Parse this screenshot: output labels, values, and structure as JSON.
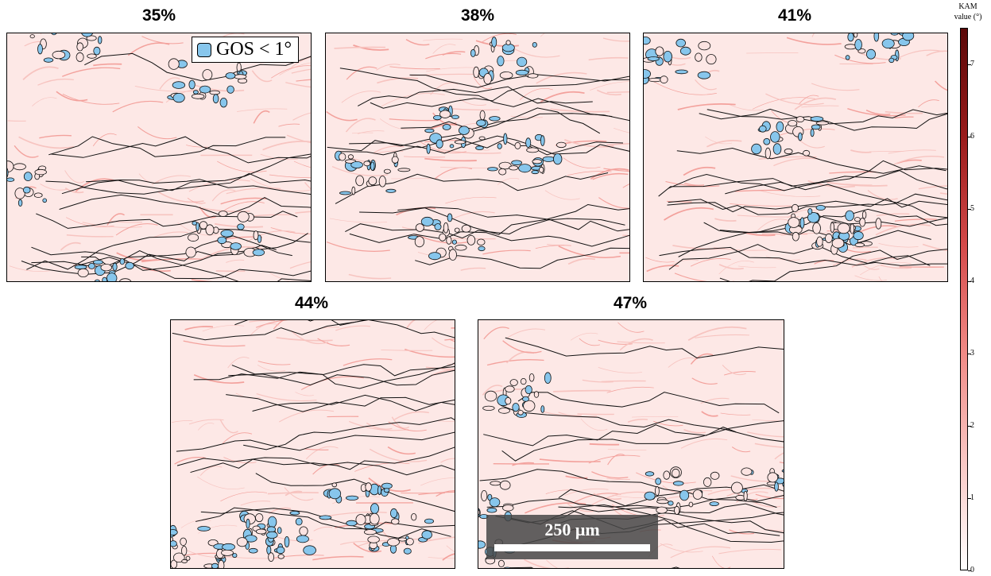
{
  "panels": [
    {
      "label": "35%"
    },
    {
      "label": "38%"
    },
    {
      "label": "41%"
    },
    {
      "label": "44%"
    },
    {
      "label": "47%"
    }
  ],
  "legend": {
    "label": "GOS < 1°",
    "swatch_color": "#87c6ec"
  },
  "colorbar": {
    "title_line1": "KAM",
    "title_line2": "value (°)",
    "ticks": [
      "0",
      "1",
      "2",
      "3",
      "4",
      "5",
      "6",
      "7"
    ],
    "range": [
      0,
      7.5
    ],
    "gradient": [
      "#ffffff",
      "#f8c7c4",
      "#f08a86",
      "#d44a4a",
      "#9a1b1b",
      "#5a0808"
    ]
  },
  "scale_bar": {
    "label": "250 μm"
  },
  "colors": {
    "grain_fill": "#87c6ec",
    "matrix": "#fde8e6",
    "boundary": "#000000"
  }
}
